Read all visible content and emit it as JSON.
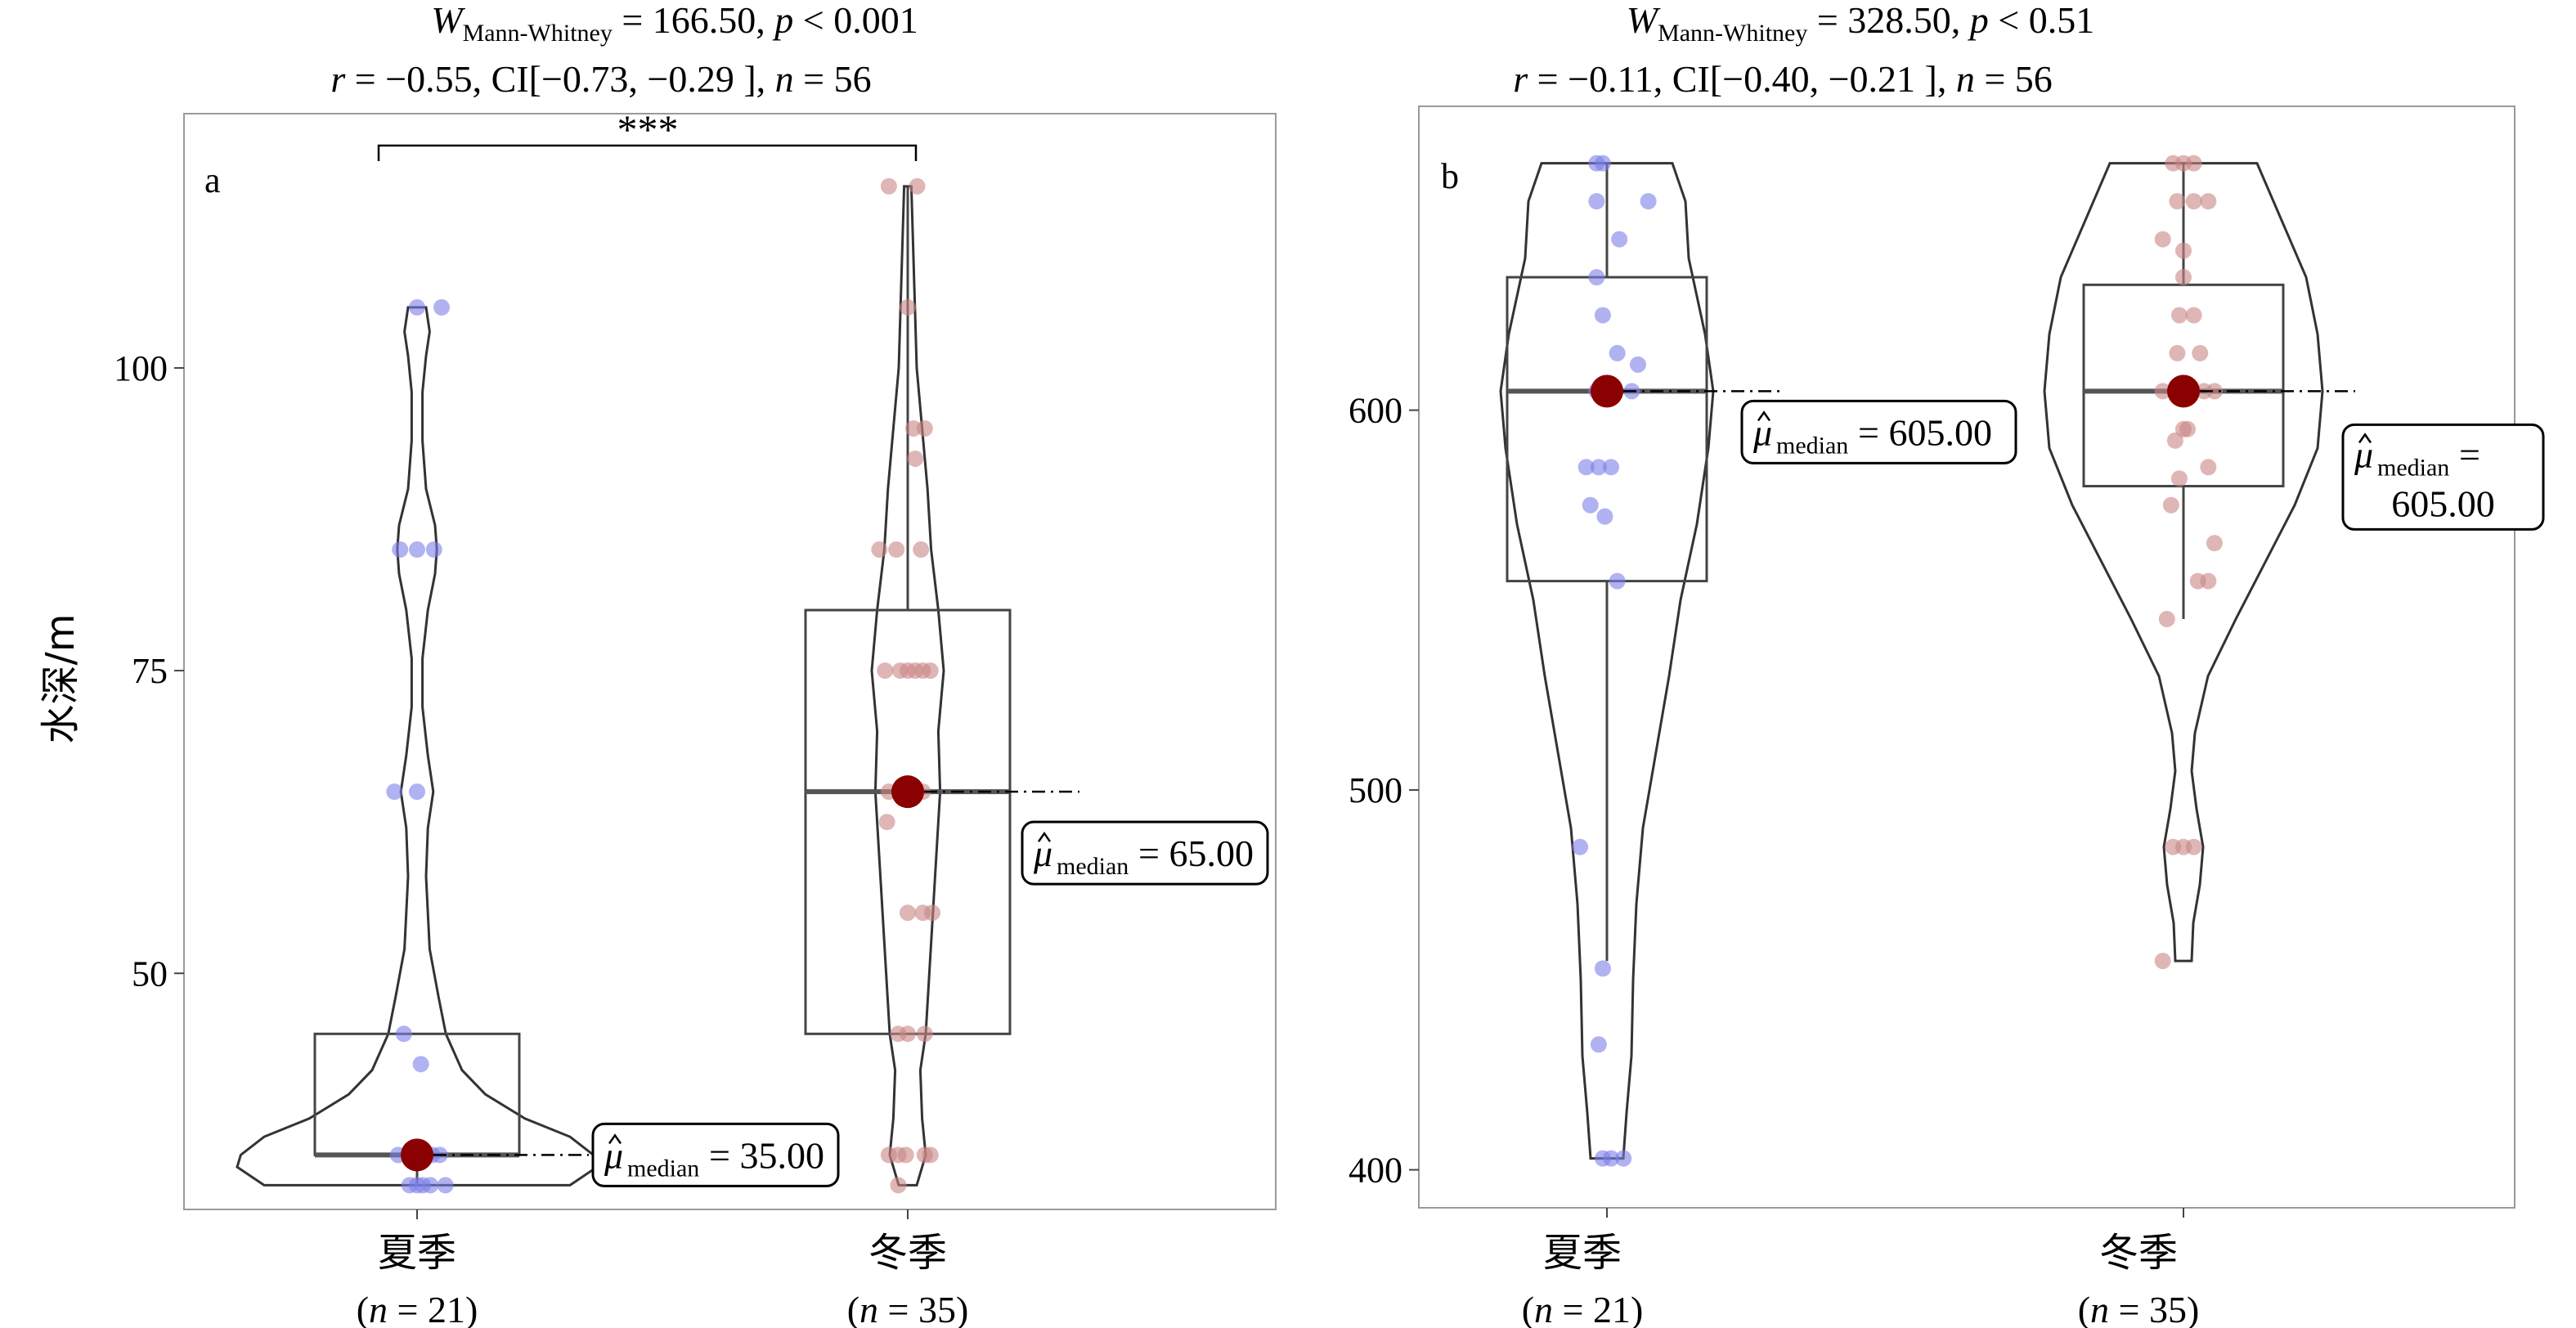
{
  "chart_data": [
    {
      "type": "violin",
      "panel_label": "a",
      "ylabel": "水深/m",
      "yticks": [
        50,
        75,
        100
      ],
      "ylim": [
        30.5,
        121
      ],
      "subtitle_line1": {
        "italic": "W",
        "sub": "Mann-Whitney",
        "rest": " = 166.50, ",
        "p_italic": "p",
        "p_rest": " < 0.001"
      },
      "subtitle_line2": {
        "r_italic": "r",
        "r_rest": " = −0.55, CI[−0.73, −0.29 ], ",
        "n_italic": "n",
        "n_rest": " = 56"
      },
      "significance": "***",
      "categories": [
        {
          "name": "夏季",
          "n_text": "(n = 21)",
          "n_pre": "(",
          "n_var": "n",
          "n_post": " = 21)"
        },
        {
          "name": "冬季",
          "n_text": "(n = 35)",
          "n_pre": "(",
          "n_var": "n",
          "n_post": " = 35)"
        }
      ],
      "groups": [
        {
          "name": "夏季",
          "color": "#7b7fe8",
          "box": {
            "q1": 35,
            "median": 35,
            "q3": 45,
            "whisker_low": 32.5,
            "whisker_high": 45
          },
          "violin": {
            "ymin": 32.5,
            "ymax": 105,
            "profile": [
              [
                32.5,
                0.85
              ],
              [
                34,
                1.0
              ],
              [
                35,
                0.98
              ],
              [
                36.5,
                0.85
              ],
              [
                38,
                0.6
              ],
              [
                40,
                0.38
              ],
              [
                42,
                0.25
              ],
              [
                45,
                0.16
              ],
              [
                48,
                0.12
              ],
              [
                52,
                0.07
              ],
              [
                58,
                0.05
              ],
              [
                62,
                0.06
              ],
              [
                65,
                0.09
              ],
              [
                68,
                0.06
              ],
              [
                72,
                0.03
              ],
              [
                76,
                0.03
              ],
              [
                80,
                0.06
              ],
              [
                83,
                0.1
              ],
              [
                85,
                0.11
              ],
              [
                87,
                0.1
              ],
              [
                90,
                0.05
              ],
              [
                94,
                0.03
              ],
              [
                98,
                0.03
              ],
              [
                101,
                0.05
              ],
              [
                103,
                0.07
              ],
              [
                105,
                0.05
              ]
            ]
          },
          "median_label": "35.00",
          "points": [
            [
              -0.04,
              32.5
            ],
            [
              0.0,
              32.5
            ],
            [
              0.03,
              32.5
            ],
            [
              0.07,
              32.5
            ],
            [
              0.15,
              32.5
            ],
            [
              -0.03,
              35
            ],
            [
              0.02,
              35
            ],
            [
              0.08,
              35
            ],
            [
              0.12,
              35
            ],
            [
              -0.1,
              35
            ],
            [
              -0.07,
              45
            ],
            [
              0.02,
              42.5
            ],
            [
              -0.12,
              65
            ],
            [
              0.0,
              65
            ],
            [
              -0.09,
              85
            ],
            [
              0.0,
              85
            ],
            [
              0.09,
              85
            ],
            [
              0.13,
              105
            ],
            [
              0.0,
              105
            ]
          ]
        },
        {
          "name": "冬季",
          "color": "#c98585",
          "box": {
            "q1": 45,
            "median": 65,
            "q3": 80,
            "whisker_low": 45,
            "whisker_high": 115
          },
          "violin": {
            "ymin": 32.5,
            "ymax": 115,
            "profile": [
              [
                32.5,
                0.05
              ],
              [
                35,
                0.1
              ],
              [
                38,
                0.08
              ],
              [
                42,
                0.07
              ],
              [
                45,
                0.1
              ],
              [
                50,
                0.12
              ],
              [
                55,
                0.14
              ],
              [
                60,
                0.16
              ],
              [
                65,
                0.18
              ],
              [
                70,
                0.17
              ],
              [
                75,
                0.2
              ],
              [
                80,
                0.17
              ],
              [
                85,
                0.13
              ],
              [
                90,
                0.11
              ],
              [
                95,
                0.08
              ],
              [
                100,
                0.05
              ],
              [
                105,
                0.04
              ],
              [
                110,
                0.03
              ],
              [
                115,
                0.02
              ]
            ]
          },
          "median_label": "65.00",
          "points": [
            [
              -0.1,
              115
            ],
            [
              0.05,
              115
            ],
            [
              0.0,
              105
            ],
            [
              0.03,
              95
            ],
            [
              0.09,
              95
            ],
            [
              0.04,
              92.5
            ],
            [
              -0.15,
              85
            ],
            [
              -0.06,
              85
            ],
            [
              0.07,
              85
            ],
            [
              -0.12,
              75
            ],
            [
              -0.04,
              75
            ],
            [
              0.0,
              75
            ],
            [
              0.04,
              75
            ],
            [
              0.08,
              75
            ],
            [
              0.12,
              75
            ],
            [
              -0.1,
              65
            ],
            [
              -0.04,
              65
            ],
            [
              0.0,
              65
            ],
            [
              0.08,
              65
            ],
            [
              -0.11,
              62.5
            ],
            [
              0.0,
              55
            ],
            [
              0.08,
              55
            ],
            [
              0.13,
              55
            ],
            [
              -0.05,
              45
            ],
            [
              0.0,
              45
            ],
            [
              0.09,
              45
            ],
            [
              -0.1,
              35
            ],
            [
              -0.05,
              35
            ],
            [
              -0.01,
              35
            ],
            [
              0.09,
              35
            ],
            [
              0.12,
              35
            ],
            [
              -0.05,
              32.5
            ]
          ]
        }
      ]
    },
    {
      "type": "violin",
      "panel_label": "b",
      "ylabel": "",
      "yticks": [
        400,
        500,
        600
      ],
      "ylim": [
        390,
        680
      ],
      "subtitle_line1": {
        "italic": "W",
        "sub": "Mann-Whitney",
        "rest": " = 328.50, ",
        "p_italic": "p",
        "p_rest": " < 0.51"
      },
      "subtitle_line2": {
        "r_italic": "r",
        "r_rest": " = −0.11, CI[−0.40, −0.21 ], ",
        "n_italic": "n",
        "n_rest": " = 56"
      },
      "significance": "",
      "categories": [
        {
          "name": "夏季",
          "n_text": "(n = 21)",
          "n_pre": "(",
          "n_var": "n",
          "n_post": " = 21)"
        },
        {
          "name": "冬季",
          "n_text": "(n = 35)",
          "n_pre": "(",
          "n_var": "n",
          "n_post": " = 35)"
        }
      ],
      "groups": [
        {
          "name": "夏季",
          "color": "#7b7fe8",
          "box": {
            "q1": 555,
            "median": 605,
            "q3": 635,
            "whisker_low": 455,
            "whisker_high": 665
          },
          "violin": {
            "ymin": 403,
            "ymax": 665,
            "profile": [
              [
                403,
                0.1
              ],
              [
                415,
                0.12
              ],
              [
                430,
                0.15
              ],
              [
                450,
                0.16
              ],
              [
                470,
                0.18
              ],
              [
                490,
                0.22
              ],
              [
                510,
                0.3
              ],
              [
                530,
                0.38
              ],
              [
                550,
                0.45
              ],
              [
                570,
                0.55
              ],
              [
                590,
                0.62
              ],
              [
                605,
                0.65
              ],
              [
                620,
                0.6
              ],
              [
                640,
                0.5
              ],
              [
                655,
                0.48
              ],
              [
                665,
                0.4
              ]
            ]
          },
          "median_label": "605.00",
          "points": [
            [
              -0.05,
              665
            ],
            [
              -0.02,
              665
            ],
            [
              -0.05,
              655
            ],
            [
              0.2,
              655
            ],
            [
              0.06,
              645
            ],
            [
              -0.05,
              635
            ],
            [
              -0.02,
              625
            ],
            [
              0.05,
              615
            ],
            [
              0.15,
              612
            ],
            [
              -0.05,
              605
            ],
            [
              0.0,
              605
            ],
            [
              0.12,
              605
            ],
            [
              -0.1,
              585
            ],
            [
              -0.04,
              585
            ],
            [
              0.02,
              585
            ],
            [
              -0.08,
              575
            ],
            [
              -0.01,
              572
            ],
            [
              0.05,
              555
            ],
            [
              -0.13,
              485
            ],
            [
              -0.02,
              453
            ],
            [
              -0.04,
              433
            ],
            [
              0.02,
              403
            ],
            [
              0.08,
              403
            ],
            [
              -0.02,
              403
            ]
          ]
        },
        {
          "name": "冬季",
          "color": "#c98585",
          "box": {
            "q1": 580,
            "median": 605,
            "q3": 633,
            "whisker_low": 545,
            "whisker_high": 665
          },
          "violin": {
            "ymin": 455,
            "ymax": 665,
            "profile": [
              [
                455,
                0.05
              ],
              [
                465,
                0.06
              ],
              [
                475,
                0.1
              ],
              [
                485,
                0.12
              ],
              [
                495,
                0.08
              ],
              [
                505,
                0.05
              ],
              [
                515,
                0.07
              ],
              [
                530,
                0.15
              ],
              [
                545,
                0.32
              ],
              [
                560,
                0.5
              ],
              [
                575,
                0.68
              ],
              [
                590,
                0.82
              ],
              [
                605,
                0.85
              ],
              [
                620,
                0.82
              ],
              [
                635,
                0.75
              ],
              [
                650,
                0.6
              ],
              [
                665,
                0.45
              ]
            ]
          },
          "median_label": "605.00",
          "points": [
            [
              -0.05,
              665
            ],
            [
              0.0,
              665
            ],
            [
              0.05,
              665
            ],
            [
              -0.03,
              655
            ],
            [
              0.05,
              655
            ],
            [
              0.12,
              655
            ],
            [
              -0.1,
              645
            ],
            [
              0.0,
              642
            ],
            [
              0.0,
              635
            ],
            [
              -0.02,
              625
            ],
            [
              0.05,
              625
            ],
            [
              -0.03,
              615
            ],
            [
              0.08,
              615
            ],
            [
              -0.1,
              605
            ],
            [
              0.1,
              605
            ],
            [
              0.15,
              605
            ],
            [
              0.0,
              595
            ],
            [
              0.02,
              595
            ],
            [
              -0.04,
              592
            ],
            [
              0.12,
              585
            ],
            [
              -0.02,
              582
            ],
            [
              -0.06,
              575
            ],
            [
              0.15,
              565
            ],
            [
              0.07,
              555
            ],
            [
              0.12,
              555
            ],
            [
              -0.08,
              545
            ],
            [
              -0.05,
              485
            ],
            [
              0.05,
              485
            ],
            [
              -0.1,
              455
            ],
            [
              0.0,
              485
            ]
          ]
        }
      ]
    }
  ]
}
